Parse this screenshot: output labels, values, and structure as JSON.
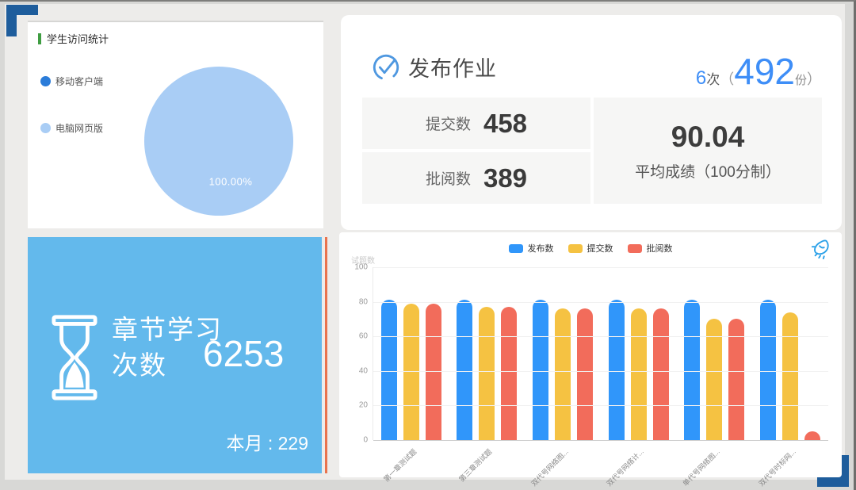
{
  "slide": {
    "corner_color": "#1e5d9c",
    "background": "#edecea"
  },
  "student_visits_panel": {
    "title": "学生访问统计",
    "title_accent_color": "#3f9d42"
  },
  "homework_panel": {
    "title": "发布作业",
    "metric": {
      "times": "6",
      "times_unit": "次",
      "paren_open": "（",
      "total": "492",
      "total_unit": "份",
      "paren_close": "）"
    },
    "stats": [
      {
        "label": "提交数",
        "value": "458"
      },
      {
        "label": "批阅数",
        "value": "389"
      }
    ],
    "average": {
      "value": "90.04",
      "label": "平均成绩（100分制）"
    },
    "accent_color": "#3e8ef7"
  },
  "chapter_panel": {
    "title_line1": "章节学习",
    "title_line2": "次数",
    "value": "6253",
    "month_label": "本月 : 229",
    "background": "#63b9ec",
    "accent_line_color": "#e9734e"
  },
  "chart_data": [
    {
      "type": "pie",
      "title": "学生访问统计",
      "labels": [
        "移动客户端",
        "电脑网页版"
      ],
      "values": [
        0,
        100
      ],
      "colors": [
        "#2b7cd9",
        "#a9cdf5"
      ],
      "data_label": "100.00%",
      "legend_position": "left"
    },
    {
      "type": "bar",
      "ylabel": "试题数",
      "ylim": [
        0,
        100
      ],
      "yticks": [
        0,
        20,
        40,
        60,
        80,
        100
      ],
      "grid": true,
      "legend_position": "top",
      "categories": [
        "第一章测试题",
        "第三章测试题",
        "双代号网络图...",
        "双代号网络计...",
        "单代号网络图...",
        "双代号时标网..."
      ],
      "series": [
        {
          "name": "发布数",
          "color": "#3096fa",
          "values": [
            81,
            81,
            81,
            81,
            81,
            81
          ]
        },
        {
          "name": "提交数",
          "color": "#f5c242",
          "values": [
            79,
            77,
            76,
            76,
            70,
            74
          ]
        },
        {
          "name": "批阅数",
          "color": "#f26c5b",
          "values": [
            79,
            77,
            76,
            76,
            70,
            5
          ]
        }
      ]
    }
  ]
}
